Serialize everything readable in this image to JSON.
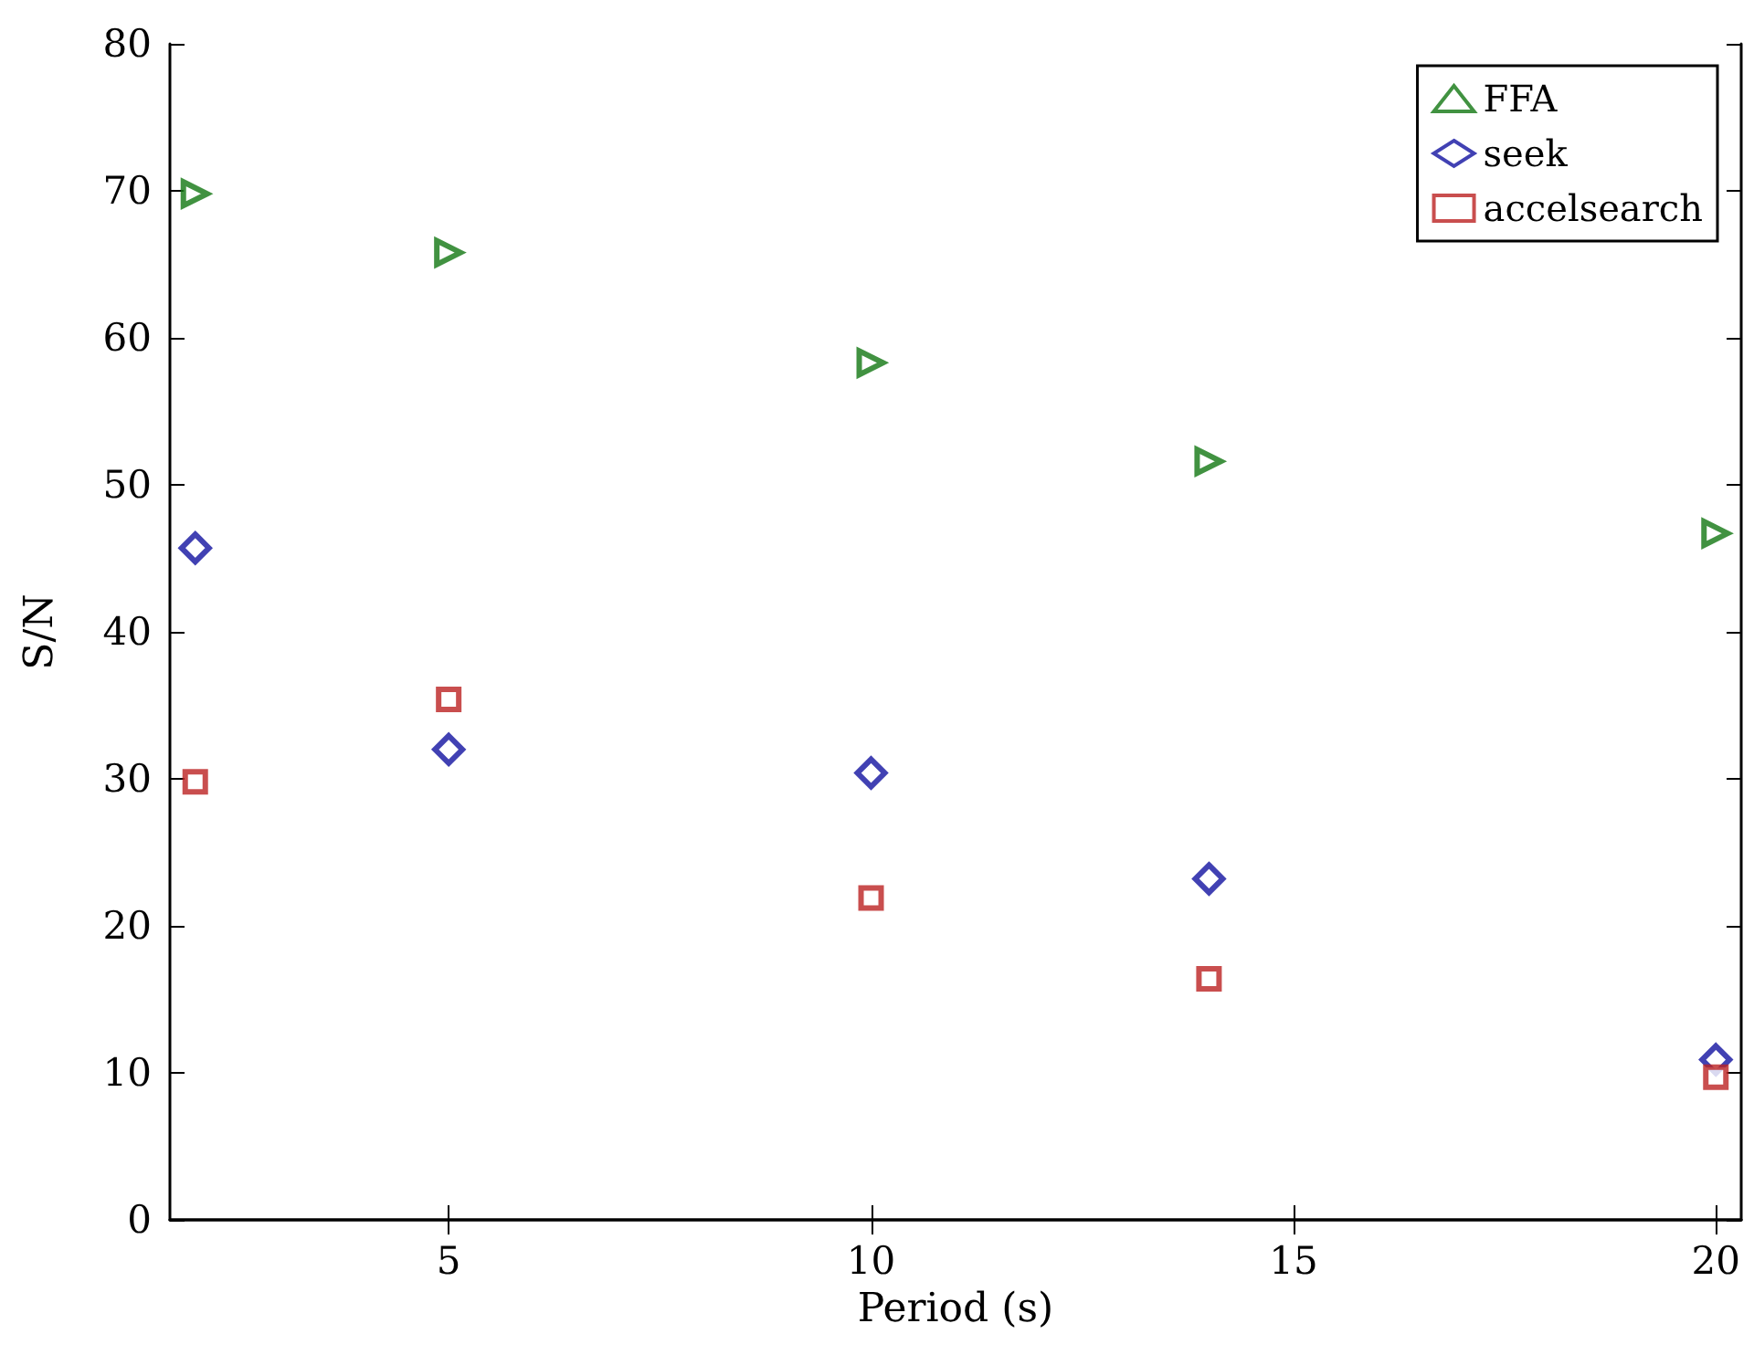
{
  "chart_data": {
    "type": "scatter",
    "xlabel": "Period (s)",
    "ylabel": "S/N",
    "x": [
      2,
      5,
      10,
      14,
      20
    ],
    "series": [
      {
        "name": "FFA",
        "color": "#117711",
        "marker": "triangle",
        "values": [
          69.8,
          65.8,
          58.3,
          51.6,
          46.7
        ]
      },
      {
        "name": "seek",
        "color": "#1111a0",
        "marker": "diamond",
        "values": [
          45.7,
          32.0,
          30.4,
          23.2,
          10.9
        ]
      },
      {
        "name": "accelsearch",
        "color": "#bb2222",
        "marker": "square",
        "values": [
          29.8,
          35.4,
          21.9,
          16.4,
          9.7
        ]
      }
    ],
    "xlim": [
      1.7,
      20.3
    ],
    "xticks": [
      5,
      10,
      15,
      20
    ],
    "ylim": [
      0,
      80
    ],
    "yticks": [
      0,
      10,
      20,
      30,
      40,
      50,
      60,
      70,
      80
    ],
    "grid": false,
    "legend": "top right"
  }
}
